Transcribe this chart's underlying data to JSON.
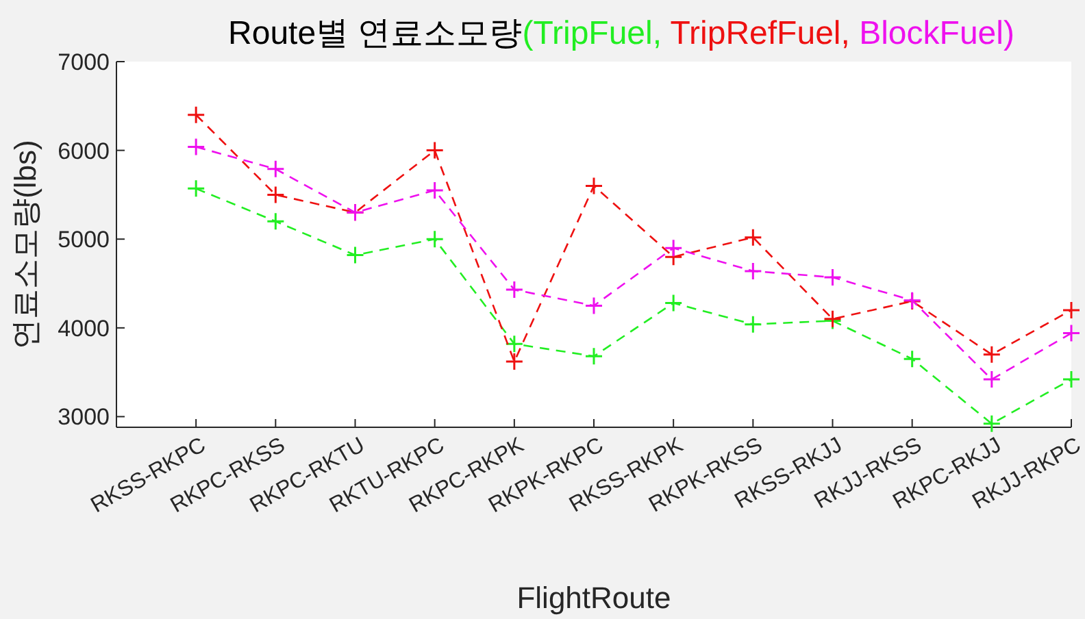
{
  "chart_data": {
    "type": "line",
    "title": "Route별 연료소모량",
    "xlabel": "FlightRoute",
    "ylabel": "연료소모량(lbs)",
    "categories": [
      "RKSS-RKPC",
      "RKPC-RKSS",
      "RKPC-RKTU",
      "RKTU-RKPC",
      "RKPC-RKPK",
      "RKPK-RKPC",
      "RKSS-RKPK",
      "RKPK-RKSS",
      "RKSS-RKJJ",
      "RKJJ-RKSS",
      "RKPC-RKJJ",
      "RKJJ-RKPC"
    ],
    "series": [
      {
        "name": "(TripFuel,",
        "color": "#22ee22",
        "marker": "cross",
        "values": [
          5570,
          5200,
          4820,
          5000,
          3820,
          3680,
          4280,
          4040,
          4080,
          3650,
          2920,
          3420
        ]
      },
      {
        "name": "TripRefFuel,",
        "color": "#ee1111",
        "marker": "cross",
        "values": [
          6400,
          5500,
          5300,
          6000,
          3620,
          5600,
          4800,
          5020,
          4100,
          4300,
          3700,
          4200
        ]
      },
      {
        "name": "BlockFuel)",
        "color": "#ee11ee",
        "marker": "cross",
        "values": [
          6040,
          5790,
          5300,
          5550,
          4430,
          4250,
          4900,
          4640,
          4570,
          4310,
          3420,
          3940
        ]
      }
    ],
    "ylim": [
      2880,
      7000
    ],
    "yticks": [
      3000,
      4000,
      5000,
      6000,
      7000
    ],
    "line_style": "dashed",
    "grid": false,
    "legend": false
  }
}
